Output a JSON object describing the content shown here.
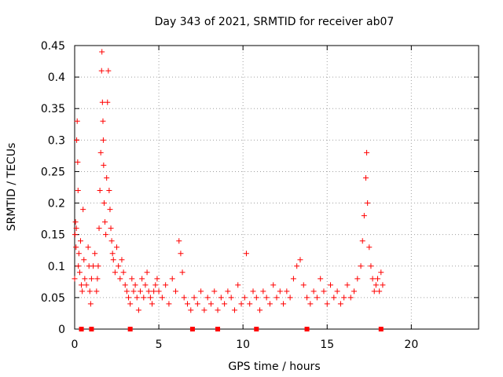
{
  "chart_data": {
    "type": "scatter",
    "title": "Day 343 of 2021, SRMTID for receiver ab07",
    "xlabel": "GPS time / hours",
    "ylabel": "SRMTID / TECUs",
    "xlim": [
      0,
      24
    ],
    "ylim": [
      0,
      0.45
    ],
    "x_ticks": [
      0,
      5,
      10,
      15,
      20
    ],
    "y_ticks": [
      0,
      0.05,
      0.1,
      0.15,
      0.2,
      0.25,
      0.3,
      0.35,
      0.4,
      0.45
    ],
    "x_tick_labels": [
      "0",
      "5",
      "10",
      "15",
      "20"
    ],
    "y_tick_labels": [
      "0",
      "0.05",
      "0.1",
      "0.15",
      "0.2",
      "0.25",
      "0.3",
      "0.35",
      "0.4",
      "0.45"
    ],
    "grid": true,
    "marker": "+",
    "series_color": "#ff0000",
    "gap_marker_color": "#ff0000",
    "series": [
      {
        "name": "SRMTID",
        "points": [
          [
            0.0,
            0.08
          ],
          [
            0.02,
            0.15
          ],
          [
            0.05,
            0.17
          ],
          [
            0.08,
            0.13
          ],
          [
            0.1,
            0.16
          ],
          [
            0.12,
            0.3
          ],
          [
            0.15,
            0.33
          ],
          [
            0.18,
            0.265
          ],
          [
            0.2,
            0.22
          ],
          [
            0.22,
            0.1
          ],
          [
            0.25,
            0.12
          ],
          [
            0.3,
            0.09
          ],
          [
            0.35,
            0.14
          ],
          [
            0.4,
            0.07
          ],
          [
            0.45,
            0.06
          ],
          [
            0.5,
            0.19
          ],
          [
            0.55,
            0.11
          ],
          [
            0.6,
            0.08
          ],
          [
            0.7,
            0.07
          ],
          [
            0.8,
            0.13
          ],
          [
            0.85,
            0.1
          ],
          [
            0.9,
            0.06
          ],
          [
            0.95,
            0.04
          ],
          [
            1.0,
            0.08
          ],
          [
            1.1,
            0.1
          ],
          [
            1.2,
            0.12
          ],
          [
            1.3,
            0.06
          ],
          [
            1.35,
            0.08
          ],
          [
            1.4,
            0.1
          ],
          [
            1.45,
            0.16
          ],
          [
            1.5,
            0.22
          ],
          [
            1.55,
            0.28
          ],
          [
            1.6,
            0.41
          ],
          [
            1.62,
            0.44
          ],
          [
            1.65,
            0.36
          ],
          [
            1.68,
            0.33
          ],
          [
            1.7,
            0.3
          ],
          [
            1.72,
            0.26
          ],
          [
            1.75,
            0.2
          ],
          [
            1.8,
            0.17
          ],
          [
            1.85,
            0.15
          ],
          [
            1.9,
            0.24
          ],
          [
            1.95,
            0.36
          ],
          [
            2.0,
            0.41
          ],
          [
            2.05,
            0.22
          ],
          [
            2.1,
            0.19
          ],
          [
            2.15,
            0.16
          ],
          [
            2.2,
            0.14
          ],
          [
            2.25,
            0.12
          ],
          [
            2.3,
            0.11
          ],
          [
            2.4,
            0.09
          ],
          [
            2.5,
            0.13
          ],
          [
            2.6,
            0.1
          ],
          [
            2.7,
            0.08
          ],
          [
            2.8,
            0.11
          ],
          [
            2.9,
            0.09
          ],
          [
            3.0,
            0.07
          ],
          [
            3.1,
            0.06
          ],
          [
            3.2,
            0.05
          ],
          [
            3.3,
            0.04
          ],
          [
            3.4,
            0.08
          ],
          [
            3.5,
            0.06
          ],
          [
            3.6,
            0.07
          ],
          [
            3.7,
            0.05
          ],
          [
            3.8,
            0.03
          ],
          [
            3.9,
            0.06
          ],
          [
            4.0,
            0.08
          ],
          [
            4.1,
            0.05
          ],
          [
            4.2,
            0.07
          ],
          [
            4.3,
            0.09
          ],
          [
            4.4,
            0.06
          ],
          [
            4.5,
            0.05
          ],
          [
            4.6,
            0.04
          ],
          [
            4.7,
            0.06
          ],
          [
            4.8,
            0.07
          ],
          [
            4.9,
            0.08
          ],
          [
            5.0,
            0.06
          ],
          [
            5.2,
            0.05
          ],
          [
            5.4,
            0.07
          ],
          [
            5.6,
            0.04
          ],
          [
            5.8,
            0.08
          ],
          [
            6.0,
            0.06
          ],
          [
            6.2,
            0.14
          ],
          [
            6.3,
            0.12
          ],
          [
            6.4,
            0.09
          ],
          [
            6.5,
            0.05
          ],
          [
            6.7,
            0.04
          ],
          [
            6.9,
            0.03
          ],
          [
            7.1,
            0.05
          ],
          [
            7.3,
            0.04
          ],
          [
            7.5,
            0.06
          ],
          [
            7.7,
            0.03
          ],
          [
            7.9,
            0.05
          ],
          [
            8.1,
            0.04
          ],
          [
            8.3,
            0.06
          ],
          [
            8.5,
            0.03
          ],
          [
            8.7,
            0.05
          ],
          [
            8.9,
            0.04
          ],
          [
            9.1,
            0.06
          ],
          [
            9.3,
            0.05
          ],
          [
            9.5,
            0.03
          ],
          [
            9.7,
            0.07
          ],
          [
            9.9,
            0.04
          ],
          [
            10.1,
            0.05
          ],
          [
            10.2,
            0.12
          ],
          [
            10.4,
            0.04
          ],
          [
            10.6,
            0.06
          ],
          [
            10.8,
            0.05
          ],
          [
            11.0,
            0.03
          ],
          [
            11.2,
            0.06
          ],
          [
            11.4,
            0.05
          ],
          [
            11.6,
            0.04
          ],
          [
            11.8,
            0.07
          ],
          [
            12.0,
            0.05
          ],
          [
            12.2,
            0.06
          ],
          [
            12.4,
            0.04
          ],
          [
            12.6,
            0.06
          ],
          [
            12.8,
            0.05
          ],
          [
            13.0,
            0.08
          ],
          [
            13.2,
            0.1
          ],
          [
            13.4,
            0.11
          ],
          [
            13.6,
            0.07
          ],
          [
            13.8,
            0.05
          ],
          [
            14.0,
            0.04
          ],
          [
            14.2,
            0.06
          ],
          [
            14.4,
            0.05
          ],
          [
            14.6,
            0.08
          ],
          [
            14.8,
            0.06
          ],
          [
            15.0,
            0.04
          ],
          [
            15.2,
            0.07
          ],
          [
            15.4,
            0.05
          ],
          [
            15.6,
            0.06
          ],
          [
            15.8,
            0.04
          ],
          [
            16.0,
            0.05
          ],
          [
            16.2,
            0.07
          ],
          [
            16.4,
            0.05
          ],
          [
            16.6,
            0.06
          ],
          [
            16.8,
            0.08
          ],
          [
            17.0,
            0.1
          ],
          [
            17.1,
            0.14
          ],
          [
            17.2,
            0.18
          ],
          [
            17.3,
            0.24
          ],
          [
            17.35,
            0.28
          ],
          [
            17.4,
            0.2
          ],
          [
            17.5,
            0.13
          ],
          [
            17.6,
            0.1
          ],
          [
            17.7,
            0.08
          ],
          [
            17.8,
            0.06
          ],
          [
            17.9,
            0.07
          ],
          [
            18.0,
            0.08
          ],
          [
            18.1,
            0.06
          ],
          [
            18.2,
            0.09
          ],
          [
            18.3,
            0.07
          ]
        ]
      }
    ],
    "zero_markers_x": [
      0.4,
      1.0,
      3.3,
      7.0,
      8.5,
      10.8,
      13.8,
      18.2
    ]
  }
}
